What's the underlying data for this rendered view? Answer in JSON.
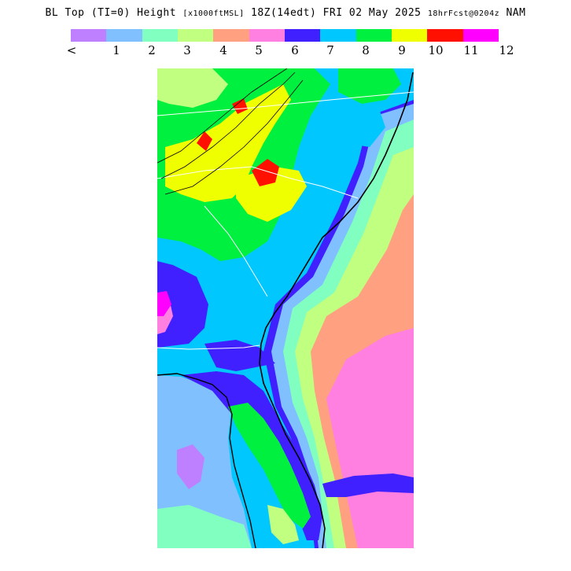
{
  "title": {
    "prefix": "BL Top (TI=0) Height",
    "units": "[x1000ftMSL]",
    "valid": "18Z(14edt) FRI 02 May 2025",
    "fcst": "18hrFcst@0204z",
    "model": "NAM"
  },
  "colorbar": {
    "colors": [
      "#bf80ff",
      "#80c0ff",
      "#80ffc0",
      "#c0ff80",
      "#ffa080",
      "#ff80e0",
      "#4020ff",
      "#00c8ff",
      "#00f040",
      "#f0ff00",
      "#ff1000",
      "#ff00ff"
    ],
    "tick_labels": [
      "<",
      "1",
      "2",
      "3",
      "4",
      "5",
      "6",
      "7",
      "8",
      "9",
      "10",
      "11",
      "12"
    ]
  },
  "map": {
    "region": "US Southeast (Virginia to Florida)",
    "fill_colors": {
      "c1": "#80c0ff",
      "c2": "#80ffc0",
      "c3": "#c0ff80",
      "c4": "#ffa080",
      "c5": "#ff80e0",
      "c6": "#4020ff",
      "c7": "#00c8ff",
      "c8": "#00f040",
      "c9": "#f0ff00",
      "c10": "#ff1000",
      "c11": "#ff00ff",
      "clt": "#bf80ff"
    },
    "coast_color": "#000000",
    "border_color": "#ffffff"
  }
}
